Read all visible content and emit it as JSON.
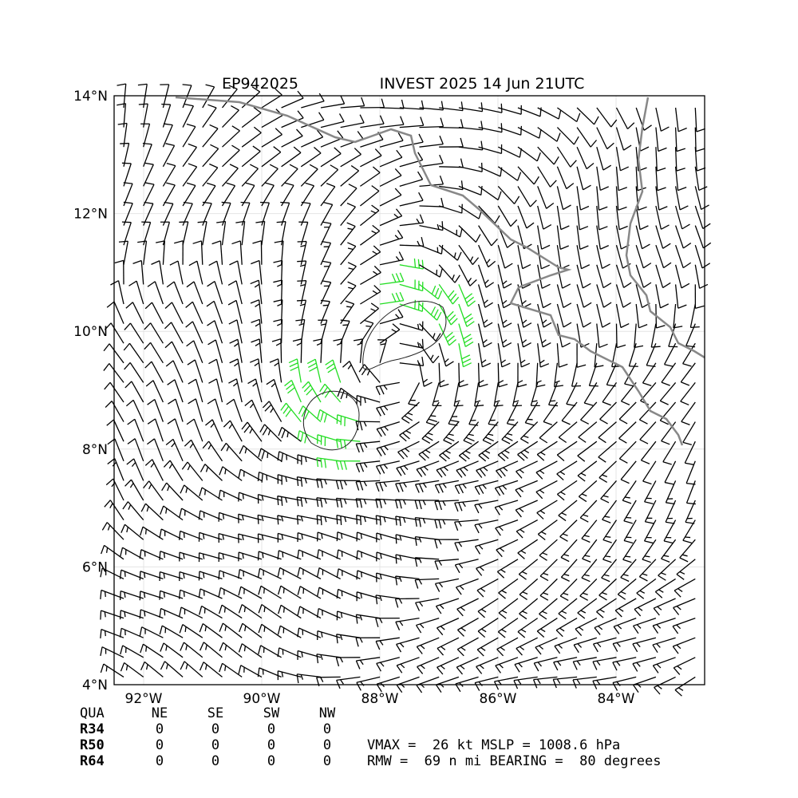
{
  "chart_data": {
    "type": "wind-barb-map",
    "title_left": "EP942025",
    "title_right": "INVEST 2025 14 Jun 21UTC",
    "xlim": [
      -92.5,
      -82.5
    ],
    "ylim": [
      4,
      14
    ],
    "xticks": [
      {
        "value": -92,
        "label": "92°W"
      },
      {
        "value": -90,
        "label": "90°W"
      },
      {
        "value": -88,
        "label": "88°W"
      },
      {
        "value": -86,
        "label": "86°W"
      },
      {
        "value": -84,
        "label": "84°W"
      }
    ],
    "yticks": [
      {
        "value": 4,
        "label": "4°N"
      },
      {
        "value": 6,
        "label": "6°N"
      },
      {
        "value": 8,
        "label": "8°N"
      },
      {
        "value": 10,
        "label": "10°N"
      },
      {
        "value": 12,
        "label": "12°N"
      },
      {
        "value": 14,
        "label": "14°N"
      }
    ],
    "grid": true
  },
  "table": {
    "header": [
      "QUA",
      "NE",
      "SE",
      "SW",
      "NW"
    ],
    "rows": [
      [
        "R34",
        0,
        0,
        0,
        0
      ],
      [
        "R50",
        0,
        0,
        0,
        0
      ],
      [
        "R64",
        0,
        0,
        0,
        0
      ]
    ]
  },
  "info": [
    "VMAX =  26 kt MSLP = 1008.6 hPa",
    "RMW =  69 n mi BEARING =  80 degrees"
  ]
}
